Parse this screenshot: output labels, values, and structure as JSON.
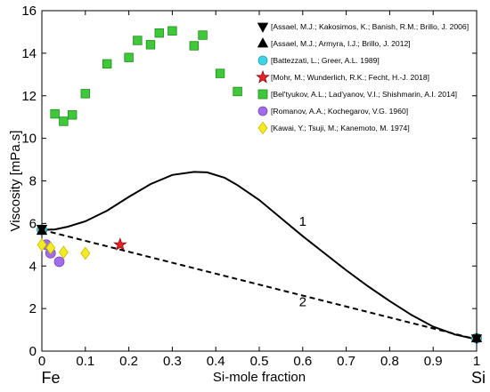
{
  "chart_data": {
    "type": "scatter",
    "xlabel": "Si-mole fraction",
    "ylabel": "Viscosity [mPa.s]",
    "xlim": [
      0,
      1
    ],
    "ylim": [
      0,
      16
    ],
    "xticks": [
      0,
      0.1,
      0.2,
      0.3,
      0.4,
      0.5,
      0.6,
      0.7,
      0.8,
      0.9,
      1
    ],
    "xtick_labels": [
      "0",
      "0.1",
      "0.2",
      "0.3",
      "0.4",
      "0.5",
      "0.6",
      "0.7",
      "0.8",
      "0.9",
      "1"
    ],
    "yticks": [
      0,
      2,
      4,
      6,
      8,
      10,
      12,
      14,
      16
    ],
    "ytick_labels": [
      "0",
      "2",
      "4",
      "6",
      "8",
      "10",
      "12",
      "14",
      "16"
    ],
    "grid": false,
    "legend_position": "top-right",
    "end_labels": {
      "left": "Fe",
      "right": "Si"
    },
    "curves": [
      {
        "label": "1",
        "style": "solid",
        "label_at": [
          0.6,
          5.9
        ],
        "points": [
          [
            0,
            5.7
          ],
          [
            0.03,
            5.72
          ],
          [
            0.06,
            5.85
          ],
          [
            0.1,
            6.1
          ],
          [
            0.15,
            6.6
          ],
          [
            0.2,
            7.25
          ],
          [
            0.25,
            7.85
          ],
          [
            0.3,
            8.28
          ],
          [
            0.35,
            8.42
          ],
          [
            0.38,
            8.4
          ],
          [
            0.42,
            8.15
          ],
          [
            0.45,
            7.8
          ],
          [
            0.5,
            7.1
          ],
          [
            0.55,
            6.25
          ],
          [
            0.6,
            5.4
          ],
          [
            0.65,
            4.6
          ],
          [
            0.7,
            3.8
          ],
          [
            0.75,
            3.05
          ],
          [
            0.8,
            2.35
          ],
          [
            0.85,
            1.7
          ],
          [
            0.9,
            1.15
          ],
          [
            0.95,
            0.78
          ],
          [
            1,
            0.55
          ]
        ]
      },
      {
        "label": "2",
        "style": "dashed",
        "label_at": [
          0.6,
          2.1
        ],
        "points": [
          [
            0,
            5.7
          ],
          [
            1,
            0.55
          ]
        ]
      }
    ],
    "series": [
      {
        "name": "[Assael, M.J.; Kakosimos, K.; Banish, R.M.; Brillo, J. 2006]",
        "marker": "triangle-down",
        "color": "#000000",
        "points": [
          [
            0,
            5.75
          ],
          [
            1,
            0.6
          ]
        ]
      },
      {
        "name": "[Assael, M.J.; Armyra, I.J.; Brillo, J. 2012]",
        "marker": "triangle-up",
        "color": "#000000",
        "points": [
          [
            0,
            5.65
          ],
          [
            1,
            0.6
          ]
        ]
      },
      {
        "name": "[Battezzati, L.; Greer, A.L. 1989]",
        "marker": "circle",
        "color": "#3fd4e6",
        "points": [
          [
            0,
            5.7
          ],
          [
            1,
            0.6
          ]
        ]
      },
      {
        "name": "[Mohr, M.; Wunderlich, R.K.; Fecht, H.-J. 2018]",
        "marker": "star",
        "color": "#e8232a",
        "points": [
          [
            0.18,
            5.0
          ]
        ]
      },
      {
        "name": "[Bel'tyukov, A.L.; Lad'yanov, V.I.; Shishmarin, A.I. 2014]",
        "marker": "square",
        "color": "#3ec83a",
        "points": [
          [
            0.03,
            11.15
          ],
          [
            0.05,
            10.8
          ],
          [
            0.07,
            11.1
          ],
          [
            0.1,
            12.1
          ],
          [
            0.15,
            13.5
          ],
          [
            0.2,
            13.8
          ],
          [
            0.22,
            14.6
          ],
          [
            0.25,
            14.4
          ],
          [
            0.27,
            14.95
          ],
          [
            0.3,
            15.05
          ],
          [
            0.35,
            14.35
          ],
          [
            0.37,
            14.85
          ],
          [
            0.41,
            13.05
          ],
          [
            0.45,
            12.2
          ]
        ]
      },
      {
        "name": "[Romanov, A.A.; Kochegarov, V.G. 1960]",
        "marker": "circle",
        "color": "#a26be8",
        "points": [
          [
            0.01,
            5.0
          ],
          [
            0.02,
            4.6
          ],
          [
            0.04,
            4.2
          ]
        ]
      },
      {
        "name": "[Kawai, Y.; Tsuji, M.; Kanemoto, M. 1974]",
        "marker": "diamond",
        "color": "#f2ec25",
        "points": [
          [
            0,
            5.0
          ],
          [
            0.02,
            4.85
          ],
          [
            0.05,
            4.65
          ],
          [
            0.1,
            4.6
          ]
        ]
      }
    ]
  },
  "colors": {
    "green_square_edge": "#1f8e1c",
    "cyan_circle_edge": "#1aa0b0",
    "purple_circle_edge": "#7a44c4",
    "yellow_diamond_edge": "#c9b800",
    "red_star_edge": "#8e0a0e"
  }
}
